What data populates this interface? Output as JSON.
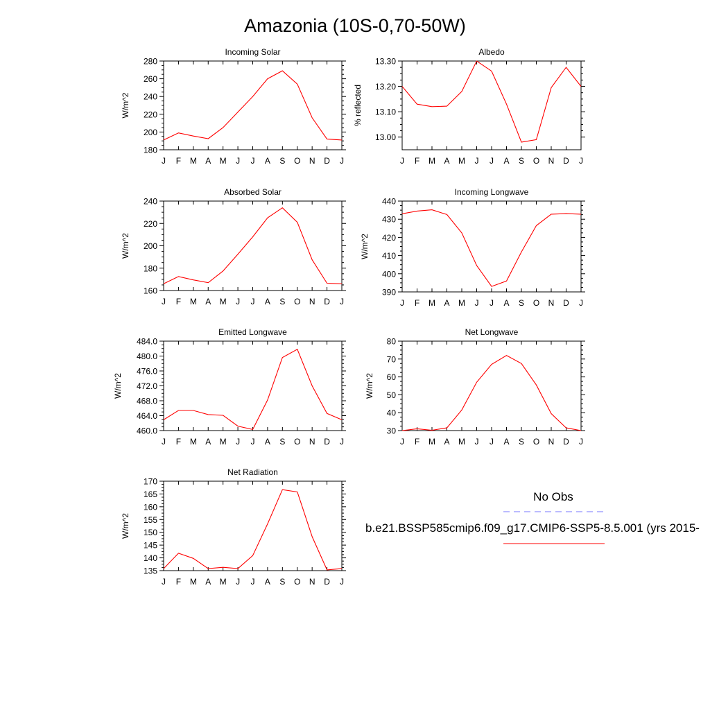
{
  "title": "Amazonia (10S-0,70-50W)",
  "month_labels": [
    "J",
    "F",
    "M",
    "A",
    "M",
    "J",
    "J",
    "A",
    "S",
    "O",
    "N",
    "D",
    "J"
  ],
  "colors": {
    "model_line": "#ff0000",
    "obs_line": "#7777ff",
    "axis": "#000000"
  },
  "legend": {
    "obs_label": "No Obs",
    "model_label": "b.e21.BSSP585cmip6.f09_g17.CMIP6-SSP5-8.5.001 (yrs 2015-"
  },
  "chart_data": [
    {
      "type": "line",
      "title": "Incoming Solar",
      "ylabel": "W/m^2",
      "ylim": [
        180,
        280
      ],
      "yticks": [
        180,
        200,
        220,
        240,
        260,
        280
      ],
      "yticklabels": [
        "180",
        "200",
        "220",
        "240",
        "260",
        "280"
      ],
      "series": [
        {
          "values": [
            191,
            199,
            195.5,
            192.5,
            205,
            222.5,
            240,
            260,
            269,
            254,
            216,
            192,
            191
          ]
        }
      ]
    },
    {
      "type": "line",
      "title": "Albedo",
      "ylabel": "% reflected",
      "ylim": [
        12.95,
        13.3
      ],
      "yticks": [
        13.0,
        13.1,
        13.2,
        13.3
      ],
      "yticklabels": [
        "13.00",
        "13.10",
        "13.20",
        "13.30"
      ],
      "series": [
        {
          "values": [
            13.2,
            13.13,
            13.12,
            13.122,
            13.18,
            13.3,
            13.26,
            13.13,
            12.98,
            12.99,
            13.195,
            13.275,
            13.2
          ]
        }
      ]
    },
    {
      "type": "line",
      "title": "Absorbed Solar",
      "ylabel": "W/m^2",
      "ylim": [
        160,
        240
      ],
      "yticks": [
        160,
        180,
        200,
        220,
        240
      ],
      "yticklabels": [
        "160",
        "180",
        "200",
        "220",
        "240"
      ],
      "series": [
        {
          "values": [
            166,
            172.5,
            169.5,
            167,
            177.5,
            192.5,
            208,
            225,
            234,
            221,
            187.5,
            166.5,
            166
          ]
        }
      ]
    },
    {
      "type": "line",
      "title": "Incoming Longwave",
      "ylabel": "W/m^2",
      "ylim": [
        390,
        440
      ],
      "yticks": [
        390,
        400,
        410,
        420,
        430,
        440
      ],
      "yticklabels": [
        "390",
        "400",
        "410",
        "420",
        "430",
        "440"
      ],
      "series": [
        {
          "values": [
            433,
            434.5,
            435.2,
            432.6,
            422.5,
            404.5,
            393,
            396,
            412,
            426.5,
            432.8,
            433.1,
            432.8
          ]
        }
      ]
    },
    {
      "type": "line",
      "title": "Emitted Longwave",
      "ylabel": "W/m^2",
      "ylim": [
        460,
        484
      ],
      "yticks": [
        460,
        464,
        468,
        472,
        476,
        480,
        484
      ],
      "yticklabels": [
        "460.0",
        "464.0",
        "468.0",
        "472.0",
        "476.0",
        "480.0",
        "484.0"
      ],
      "series": [
        {
          "values": [
            462.9,
            465.4,
            465.4,
            464.3,
            464.1,
            461.2,
            460.3,
            468.2,
            479.6,
            481.8,
            472.0,
            464.6,
            462.9
          ]
        }
      ]
    },
    {
      "type": "line",
      "title": "Net Longwave",
      "ylabel": "W/m^2",
      "ylim": [
        30,
        80
      ],
      "yticks": [
        30,
        40,
        50,
        60,
        70,
        80
      ],
      "yticklabels": [
        "30",
        "40",
        "50",
        "60",
        "70",
        "80"
      ],
      "series": [
        {
          "values": [
            30,
            31,
            30.2,
            31.5,
            41.5,
            57,
            67,
            72,
            67.5,
            55.5,
            39.5,
            31.5,
            30
          ]
        }
      ]
    },
    {
      "type": "line",
      "title": "Net Radiation",
      "ylabel": "W/m^2",
      "ylim": [
        135,
        170
      ],
      "yticks": [
        135,
        140,
        145,
        150,
        155,
        160,
        165,
        170
      ],
      "yticklabels": [
        "135",
        "140",
        "145",
        "150",
        "155",
        "160",
        "165",
        "170"
      ],
      "series": [
        {
          "values": [
            135.8,
            141.8,
            139.8,
            135.8,
            136.3,
            135.8,
            140.9,
            153.3,
            166.7,
            165.8,
            148.3,
            135.3,
            135.8
          ]
        }
      ]
    }
  ]
}
